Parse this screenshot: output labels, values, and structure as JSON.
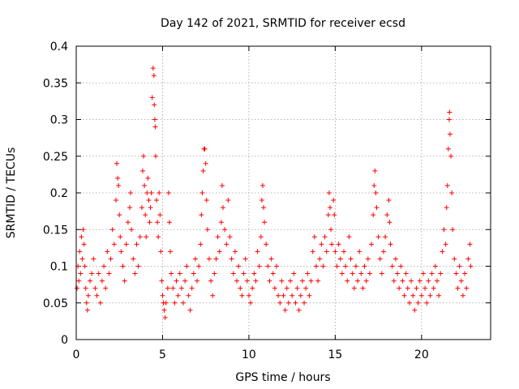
{
  "chart_data": {
    "type": "scatter",
    "title": "Day 142 of 2021, SRMTID for receiver ecsd",
    "xlabel": "GPS time / hours",
    "ylabel": "SRMTID / TECUs",
    "xlim": [
      0,
      24
    ],
    "ylim": [
      0,
      0.4
    ],
    "xticks": [
      0,
      5,
      10,
      15,
      20
    ],
    "yticks": [
      0,
      0.05,
      0.1,
      0.15,
      0.2,
      0.25,
      0.3,
      0.35,
      0.4
    ],
    "xtick_labels": [
      "0",
      "5",
      "10",
      "15",
      "20"
    ],
    "ytick_labels": [
      "0",
      "0.05",
      "0.1",
      "0.15",
      "0.2",
      "0.25",
      "0.3",
      "0.35",
      "0.4"
    ],
    "grid": true,
    "marker": "+",
    "series": [
      {
        "name": "SRMTID",
        "color": "#ff0000",
        "points": [
          [
            0.05,
            0.07
          ],
          [
            0.1,
            0.1
          ],
          [
            0.15,
            0.08
          ],
          [
            0.2,
            0.12
          ],
          [
            0.25,
            0.09
          ],
          [
            0.3,
            0.14
          ],
          [
            0.35,
            0.11
          ],
          [
            0.4,
            0.15
          ],
          [
            0.45,
            0.13
          ],
          [
            0.5,
            0.1
          ],
          [
            0.55,
            0.07
          ],
          [
            0.6,
            0.05
          ],
          [
            0.65,
            0.04
          ],
          [
            0.7,
            0.06
          ],
          [
            0.8,
            0.08
          ],
          [
            0.9,
            0.09
          ],
          [
            1.0,
            0.11
          ],
          [
            1.1,
            0.07
          ],
          [
            1.2,
            0.06
          ],
          [
            1.3,
            0.09
          ],
          [
            1.4,
            0.05
          ],
          [
            1.5,
            0.08
          ],
          [
            1.6,
            0.1
          ],
          [
            1.7,
            0.07
          ],
          [
            1.8,
            0.12
          ],
          [
            1.9,
            0.09
          ],
          [
            2.0,
            0.11
          ],
          [
            2.1,
            0.15
          ],
          [
            2.2,
            0.13
          ],
          [
            2.3,
            0.19
          ],
          [
            2.35,
            0.24
          ],
          [
            2.4,
            0.22
          ],
          [
            2.45,
            0.21
          ],
          [
            2.5,
            0.17
          ],
          [
            2.55,
            0.14
          ],
          [
            2.6,
            0.12
          ],
          [
            2.7,
            0.1
          ],
          [
            2.8,
            0.08
          ],
          [
            2.9,
            0.13
          ],
          [
            3.0,
            0.16
          ],
          [
            3.1,
            0.18
          ],
          [
            3.15,
            0.2
          ],
          [
            3.2,
            0.15
          ],
          [
            3.3,
            0.11
          ],
          [
            3.4,
            0.09
          ],
          [
            3.5,
            0.13
          ],
          [
            3.6,
            0.1
          ],
          [
            3.7,
            0.14
          ],
          [
            3.8,
            0.18
          ],
          [
            3.85,
            0.23
          ],
          [
            3.9,
            0.25
          ],
          [
            3.95,
            0.21
          ],
          [
            4.0,
            0.17
          ],
          [
            4.05,
            0.14
          ],
          [
            4.1,
            0.2
          ],
          [
            4.15,
            0.22
          ],
          [
            4.2,
            0.19
          ],
          [
            4.25,
            0.16
          ],
          [
            4.3,
            0.18
          ],
          [
            4.35,
            0.2
          ],
          [
            4.4,
            0.33
          ],
          [
            4.45,
            0.37
          ],
          [
            4.5,
            0.36
          ],
          [
            4.52,
            0.32
          ],
          [
            4.55,
            0.3
          ],
          [
            4.58,
            0.29
          ],
          [
            4.6,
            0.25
          ],
          [
            4.65,
            0.19
          ],
          [
            4.7,
            0.16
          ],
          [
            4.75,
            0.14
          ],
          [
            4.8,
            0.2
          ],
          [
            4.85,
            0.17
          ],
          [
            4.9,
            0.12
          ],
          [
            4.95,
            0.08
          ],
          [
            5.0,
            0.06
          ],
          [
            5.05,
            0.05
          ],
          [
            5.1,
            0.04
          ],
          [
            5.15,
            0.03
          ],
          [
            5.2,
            0.05
          ],
          [
            5.3,
            0.07
          ],
          [
            5.35,
            0.2
          ],
          [
            5.4,
            0.16
          ],
          [
            5.45,
            0.12
          ],
          [
            5.5,
            0.09
          ],
          [
            5.6,
            0.07
          ],
          [
            5.7,
            0.05
          ],
          [
            5.8,
            0.08
          ],
          [
            5.9,
            0.06
          ],
          [
            6.0,
            0.09
          ],
          [
            6.1,
            0.07
          ],
          [
            6.2,
            0.05
          ],
          [
            6.3,
            0.08
          ],
          [
            6.4,
            0.1
          ],
          [
            6.5,
            0.06
          ],
          [
            6.6,
            0.04
          ],
          [
            6.7,
            0.07
          ],
          [
            6.8,
            0.09
          ],
          [
            6.9,
            0.11
          ],
          [
            7.0,
            0.08
          ],
          [
            7.1,
            0.1
          ],
          [
            7.2,
            0.13
          ],
          [
            7.25,
            0.17
          ],
          [
            7.3,
            0.2
          ],
          [
            7.35,
            0.23
          ],
          [
            7.4,
            0.26
          ],
          [
            7.45,
            0.26
          ],
          [
            7.5,
            0.24
          ],
          [
            7.55,
            0.19
          ],
          [
            7.6,
            0.15
          ],
          [
            7.7,
            0.11
          ],
          [
            7.8,
            0.08
          ],
          [
            7.9,
            0.06
          ],
          [
            8.0,
            0.09
          ],
          [
            8.1,
            0.11
          ],
          [
            8.2,
            0.14
          ],
          [
            8.3,
            0.12
          ],
          [
            8.4,
            0.16
          ],
          [
            8.45,
            0.21
          ],
          [
            8.5,
            0.18
          ],
          [
            8.6,
            0.15
          ],
          [
            8.7,
            0.13
          ],
          [
            8.8,
            0.19
          ],
          [
            8.9,
            0.14
          ],
          [
            9.0,
            0.11
          ],
          [
            9.1,
            0.09
          ],
          [
            9.2,
            0.12
          ],
          [
            9.3,
            0.08
          ],
          [
            9.4,
            0.1
          ],
          [
            9.5,
            0.07
          ],
          [
            9.6,
            0.06
          ],
          [
            9.7,
            0.09
          ],
          [
            9.8,
            0.11
          ],
          [
            9.9,
            0.08
          ],
          [
            10.0,
            0.06
          ],
          [
            10.1,
            0.05
          ],
          [
            10.2,
            0.07
          ],
          [
            10.3,
            0.09
          ],
          [
            10.4,
            0.08
          ],
          [
            10.5,
            0.12
          ],
          [
            10.6,
            0.1
          ],
          [
            10.7,
            0.14
          ],
          [
            10.75,
            0.19
          ],
          [
            10.8,
            0.21
          ],
          [
            10.85,
            0.18
          ],
          [
            10.9,
            0.16
          ],
          [
            11.0,
            0.13
          ],
          [
            11.1,
            0.1
          ],
          [
            11.2,
            0.08
          ],
          [
            11.3,
            0.11
          ],
          [
            11.4,
            0.09
          ],
          [
            11.5,
            0.07
          ],
          [
            11.6,
            0.1
          ],
          [
            11.7,
            0.06
          ],
          [
            11.8,
            0.05
          ],
          [
            11.9,
            0.08
          ],
          [
            12.0,
            0.06
          ],
          [
            12.1,
            0.04
          ],
          [
            12.2,
            0.07
          ],
          [
            12.3,
            0.05
          ],
          [
            12.4,
            0.08
          ],
          [
            12.5,
            0.06
          ],
          [
            12.6,
            0.09
          ],
          [
            12.7,
            0.05
          ],
          [
            12.8,
            0.07
          ],
          [
            12.9,
            0.04
          ],
          [
            13.0,
            0.06
          ],
          [
            13.1,
            0.08
          ],
          [
            13.2,
            0.05
          ],
          [
            13.3,
            0.07
          ],
          [
            13.4,
            0.09
          ],
          [
            13.5,
            0.06
          ],
          [
            13.6,
            0.08
          ],
          [
            13.7,
            0.12
          ],
          [
            13.8,
            0.14
          ],
          [
            13.9,
            0.1
          ],
          [
            14.0,
            0.08
          ],
          [
            14.1,
            0.11
          ],
          [
            14.2,
            0.13
          ],
          [
            14.3,
            0.1
          ],
          [
            14.4,
            0.14
          ],
          [
            14.5,
            0.12
          ],
          [
            14.6,
            0.17
          ],
          [
            14.65,
            0.2
          ],
          [
            14.7,
            0.18
          ],
          [
            14.75,
            0.15
          ],
          [
            14.8,
            0.13
          ],
          [
            14.9,
            0.19
          ],
          [
            14.95,
            0.17
          ],
          [
            15.0,
            0.12
          ],
          [
            15.1,
            0.1
          ],
          [
            15.2,
            0.13
          ],
          [
            15.3,
            0.11
          ],
          [
            15.4,
            0.09
          ],
          [
            15.5,
            0.12
          ],
          [
            15.6,
            0.1
          ],
          [
            15.7,
            0.08
          ],
          [
            15.8,
            0.14
          ],
          [
            15.9,
            0.11
          ],
          [
            16.0,
            0.09
          ],
          [
            16.1,
            0.07
          ],
          [
            16.2,
            0.1
          ],
          [
            16.3,
            0.08
          ],
          [
            16.4,
            0.12
          ],
          [
            16.5,
            0.09
          ],
          [
            16.6,
            0.07
          ],
          [
            16.7,
            0.1
          ],
          [
            16.8,
            0.08
          ],
          [
            16.9,
            0.11
          ],
          [
            17.0,
            0.09
          ],
          [
            17.1,
            0.13
          ],
          [
            17.2,
            0.17
          ],
          [
            17.25,
            0.21
          ],
          [
            17.3,
            0.23
          ],
          [
            17.35,
            0.2
          ],
          [
            17.4,
            0.18
          ],
          [
            17.5,
            0.14
          ],
          [
            17.6,
            0.11
          ],
          [
            17.7,
            0.09
          ],
          [
            17.8,
            0.12
          ],
          [
            17.9,
            0.14
          ],
          [
            18.0,
            0.17
          ],
          [
            18.1,
            0.19
          ],
          [
            18.15,
            0.16
          ],
          [
            18.2,
            0.13
          ],
          [
            18.3,
            0.1
          ],
          [
            18.4,
            0.08
          ],
          [
            18.5,
            0.11
          ],
          [
            18.6,
            0.09
          ],
          [
            18.7,
            0.07
          ],
          [
            18.8,
            0.1
          ],
          [
            18.9,
            0.08
          ],
          [
            19.0,
            0.06
          ],
          [
            19.1,
            0.09
          ],
          [
            19.2,
            0.07
          ],
          [
            19.3,
            0.05
          ],
          [
            19.4,
            0.08
          ],
          [
            19.5,
            0.06
          ],
          [
            19.6,
            0.04
          ],
          [
            19.7,
            0.07
          ],
          [
            19.8,
            0.05
          ],
          [
            19.9,
            0.08
          ],
          [
            20.0,
            0.06
          ],
          [
            20.1,
            0.09
          ],
          [
            20.2,
            0.07
          ],
          [
            20.3,
            0.05
          ],
          [
            20.4,
            0.08
          ],
          [
            20.5,
            0.06
          ],
          [
            20.6,
            0.09
          ],
          [
            20.7,
            0.07
          ],
          [
            20.8,
            0.1
          ],
          [
            20.9,
            0.08
          ],
          [
            21.0,
            0.06
          ],
          [
            21.1,
            0.09
          ],
          [
            21.2,
            0.12
          ],
          [
            21.3,
            0.15
          ],
          [
            21.4,
            0.13
          ],
          [
            21.45,
            0.18
          ],
          [
            21.5,
            0.21
          ],
          [
            21.55,
            0.26
          ],
          [
            21.6,
            0.3
          ],
          [
            21.62,
            0.31
          ],
          [
            21.65,
            0.28
          ],
          [
            21.7,
            0.25
          ],
          [
            21.75,
            0.2
          ],
          [
            21.8,
            0.15
          ],
          [
            21.9,
            0.11
          ],
          [
            22.0,
            0.09
          ],
          [
            22.1,
            0.07
          ],
          [
            22.2,
            0.1
          ],
          [
            22.3,
            0.08
          ],
          [
            22.4,
            0.06
          ],
          [
            22.5,
            0.09
          ],
          [
            22.6,
            0.07
          ],
          [
            22.7,
            0.11
          ],
          [
            22.8,
            0.13
          ],
          [
            22.85,
            0.1
          ]
        ]
      }
    ]
  }
}
